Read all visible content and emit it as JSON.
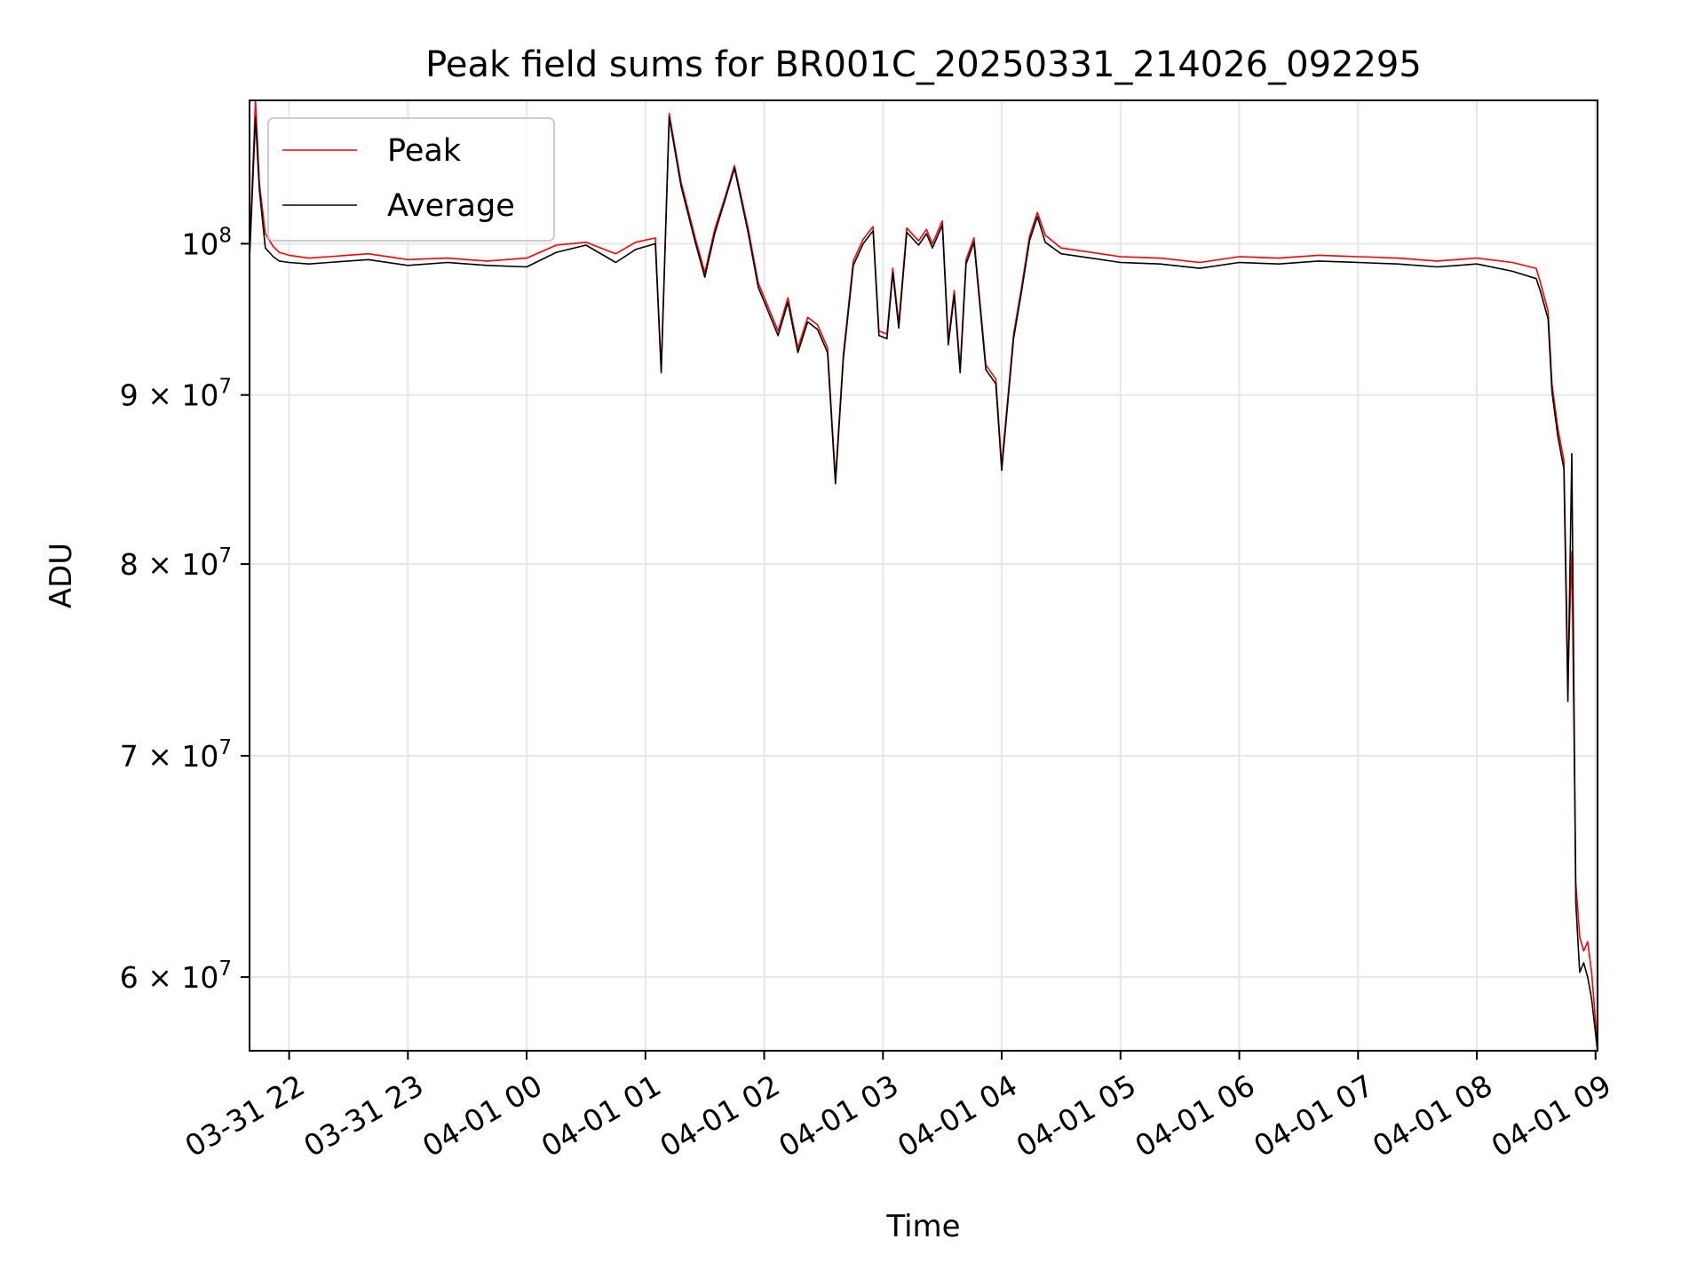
{
  "chart_data": {
    "type": "line",
    "title": "Peak field sums for BR001C_20250331_214026_092295",
    "xlabel": "Time",
    "ylabel": "ADU",
    "y_scale": "log",
    "grid": true,
    "legend_placement": "upper-left",
    "xlim": [
      "2025-03-31 21:40",
      "2025-04-01 09:01"
    ],
    "ylim": [
      57000000,
      110500000
    ],
    "x_ticks": [
      {
        "value": "2025-03-31 22:00",
        "label": "03-31 22"
      },
      {
        "value": "2025-03-31 23:00",
        "label": "03-31 23"
      },
      {
        "value": "2025-04-01 00:00",
        "label": "04-01 00"
      },
      {
        "value": "2025-04-01 01:00",
        "label": "04-01 01"
      },
      {
        "value": "2025-04-01 02:00",
        "label": "04-01 02"
      },
      {
        "value": "2025-04-01 03:00",
        "label": "04-01 03"
      },
      {
        "value": "2025-04-01 04:00",
        "label": "04-01 04"
      },
      {
        "value": "2025-04-01 05:00",
        "label": "04-01 05"
      },
      {
        "value": "2025-04-01 06:00",
        "label": "04-01 06"
      },
      {
        "value": "2025-04-01 07:00",
        "label": "04-01 07"
      },
      {
        "value": "2025-04-01 08:00",
        "label": "04-01 08"
      },
      {
        "value": "2025-04-01 09:00",
        "label": "04-01 09"
      }
    ],
    "y_ticks": [
      {
        "value": 100000000,
        "mantissa": "",
        "base": "10",
        "exp": "8"
      },
      {
        "value": 90000000,
        "mantissa": "9 × ",
        "base": "10",
        "exp": "7"
      },
      {
        "value": 80000000,
        "mantissa": "8 × ",
        "base": "10",
        "exp": "7"
      },
      {
        "value": 70000000,
        "mantissa": "7 × ",
        "base": "10",
        "exp": "7"
      },
      {
        "value": 60000000,
        "mantissa": "6 × ",
        "base": "10",
        "exp": "7"
      }
    ],
    "series": [
      {
        "name": "Peak",
        "color": "#ff0000",
        "points": [
          [
            "2025-03-31 21:40",
            99400000
          ],
          [
            "2025-03-31 21:43",
            110500000
          ],
          [
            "2025-03-31 21:45",
            104300000
          ],
          [
            "2025-03-31 21:48",
            100700000
          ],
          [
            "2025-03-31 21:52",
            99800000
          ],
          [
            "2025-03-31 21:55",
            99400000
          ],
          [
            "2025-03-31 22:00",
            99200000
          ],
          [
            "2025-03-31 22:10",
            99000000
          ],
          [
            "2025-03-31 22:20",
            99100000
          ],
          [
            "2025-03-31 22:40",
            99300000
          ],
          [
            "2025-03-31 23:00",
            98900000
          ],
          [
            "2025-03-31 23:20",
            99000000
          ],
          [
            "2025-03-31 23:40",
            98800000
          ],
          [
            "2025-04-01 00:00",
            99000000
          ],
          [
            "2025-04-01 00:15",
            99900000
          ],
          [
            "2025-04-01 00:30",
            100100000
          ],
          [
            "2025-04-01 00:45",
            99300000
          ],
          [
            "2025-04-01 00:55",
            100100000
          ],
          [
            "2025-04-01 01:05",
            100400000
          ],
          [
            "2025-04-01 01:08",
            91600000
          ],
          [
            "2025-04-01 01:12",
            109500000
          ],
          [
            "2025-04-01 01:18",
            104400000
          ],
          [
            "2025-04-01 01:25",
            100500000
          ],
          [
            "2025-04-01 01:30",
            98000000
          ],
          [
            "2025-04-01 01:35",
            101000000
          ],
          [
            "2025-04-01 01:40",
            103200000
          ],
          [
            "2025-04-01 01:45",
            105600000
          ],
          [
            "2025-04-01 01:52",
            101000000
          ],
          [
            "2025-04-01 01:57",
            97300000
          ],
          [
            "2025-04-01 02:02",
            95700000
          ],
          [
            "2025-04-01 02:07",
            94100000
          ],
          [
            "2025-04-01 02:12",
            96300000
          ],
          [
            "2025-04-01 02:17",
            93000000
          ],
          [
            "2025-04-01 02:22",
            95000000
          ],
          [
            "2025-04-01 02:27",
            94500000
          ],
          [
            "2025-04-01 02:32",
            93000000
          ],
          [
            "2025-04-01 02:36",
            84900000
          ],
          [
            "2025-04-01 02:40",
            92600000
          ],
          [
            "2025-04-01 02:45",
            98800000
          ],
          [
            "2025-04-01 02:50",
            100300000
          ],
          [
            "2025-04-01 02:55",
            101200000
          ],
          [
            "2025-04-01 02:58",
            94100000
          ],
          [
            "2025-04-01 03:02",
            93900000
          ],
          [
            "2025-04-01 03:05",
            98300000
          ],
          [
            "2025-04-01 03:08",
            94600000
          ],
          [
            "2025-04-01 03:12",
            101100000
          ],
          [
            "2025-04-01 03:18",
            100200000
          ],
          [
            "2025-04-01 03:22",
            101000000
          ],
          [
            "2025-04-01 03:25",
            100000000
          ],
          [
            "2025-04-01 03:30",
            101600000
          ],
          [
            "2025-04-01 03:33",
            93500000
          ],
          [
            "2025-04-01 03:36",
            96800000
          ],
          [
            "2025-04-01 03:39",
            91700000
          ],
          [
            "2025-04-01 03:42",
            98900000
          ],
          [
            "2025-04-01 03:46",
            100400000
          ],
          [
            "2025-04-01 03:52",
            91900000
          ],
          [
            "2025-04-01 03:57",
            91000000
          ],
          [
            "2025-04-01 04:00",
            85700000
          ],
          [
            "2025-04-01 04:06",
            93900000
          ],
          [
            "2025-04-01 04:10",
            97000000
          ],
          [
            "2025-04-01 04:14",
            100500000
          ],
          [
            "2025-04-01 04:18",
            102200000
          ],
          [
            "2025-04-01 04:22",
            100600000
          ],
          [
            "2025-04-01 04:30",
            99700000
          ],
          [
            "2025-04-01 04:45",
            99400000
          ],
          [
            "2025-04-01 05:00",
            99100000
          ],
          [
            "2025-04-01 05:20",
            99000000
          ],
          [
            "2025-04-01 05:40",
            98700000
          ],
          [
            "2025-04-01 06:00",
            99100000
          ],
          [
            "2025-04-01 06:20",
            99000000
          ],
          [
            "2025-04-01 06:40",
            99200000
          ],
          [
            "2025-04-01 07:00",
            99100000
          ],
          [
            "2025-04-01 07:20",
            99000000
          ],
          [
            "2025-04-01 07:40",
            98800000
          ],
          [
            "2025-04-01 08:00",
            99000000
          ],
          [
            "2025-04-01 08:18",
            98700000
          ],
          [
            "2025-04-01 08:30",
            98300000
          ],
          [
            "2025-04-01 08:32",
            97400000
          ],
          [
            "2025-04-01 08:36",
            95400000
          ],
          [
            "2025-04-01 08:38",
            90700000
          ],
          [
            "2025-04-01 08:41",
            87900000
          ],
          [
            "2025-04-01 08:44",
            86000000
          ],
          [
            "2025-04-01 08:46",
            73900000
          ],
          [
            "2025-04-01 08:48",
            80700000
          ],
          [
            "2025-04-01 08:50",
            64100000
          ],
          [
            "2025-04-01 08:52",
            61700000
          ],
          [
            "2025-04-01 08:54",
            61100000
          ],
          [
            "2025-04-01 08:56",
            61500000
          ],
          [
            "2025-04-01 08:58",
            60200000
          ],
          [
            "2025-04-01 09:01",
            57200000
          ]
        ]
      },
      {
        "name": "Average",
        "color": "#000000",
        "points": [
          [
            "2025-03-31 21:40",
            98900000
          ],
          [
            "2025-03-31 21:43",
            109200000
          ],
          [
            "2025-03-31 21:45",
            103800000
          ],
          [
            "2025-03-31 21:48",
            99700000
          ],
          [
            "2025-03-31 21:52",
            99100000
          ],
          [
            "2025-03-31 21:55",
            98800000
          ],
          [
            "2025-03-31 22:00",
            98700000
          ],
          [
            "2025-03-31 22:10",
            98600000
          ],
          [
            "2025-03-31 22:20",
            98700000
          ],
          [
            "2025-03-31 22:40",
            98900000
          ],
          [
            "2025-03-31 23:00",
            98500000
          ],
          [
            "2025-03-31 23:20",
            98700000
          ],
          [
            "2025-03-31 23:40",
            98500000
          ],
          [
            "2025-04-01 00:00",
            98400000
          ],
          [
            "2025-04-01 00:15",
            99400000
          ],
          [
            "2025-04-01 00:30",
            99900000
          ],
          [
            "2025-04-01 00:45",
            98700000
          ],
          [
            "2025-04-01 00:55",
            99600000
          ],
          [
            "2025-04-01 01:05",
            100000000
          ],
          [
            "2025-04-01 01:08",
            91400000
          ],
          [
            "2025-04-01 01:12",
            109200000
          ],
          [
            "2025-04-01 01:18",
            104100000
          ],
          [
            "2025-04-01 01:25",
            100200000
          ],
          [
            "2025-04-01 01:30",
            97700000
          ],
          [
            "2025-04-01 01:35",
            100700000
          ],
          [
            "2025-04-01 01:40",
            103000000
          ],
          [
            "2025-04-01 01:45",
            105400000
          ],
          [
            "2025-04-01 01:52",
            100700000
          ],
          [
            "2025-04-01 01:57",
            97000000
          ],
          [
            "2025-04-01 02:02",
            95400000
          ],
          [
            "2025-04-01 02:07",
            93800000
          ],
          [
            "2025-04-01 02:12",
            96000000
          ],
          [
            "2025-04-01 02:17",
            92700000
          ],
          [
            "2025-04-01 02:22",
            94700000
          ],
          [
            "2025-04-01 02:27",
            94200000
          ],
          [
            "2025-04-01 02:32",
            92700000
          ],
          [
            "2025-04-01 02:36",
            84600000
          ],
          [
            "2025-04-01 02:40",
            92300000
          ],
          [
            "2025-04-01 02:45",
            98500000
          ],
          [
            "2025-04-01 02:50",
            100000000
          ],
          [
            "2025-04-01 02:55",
            100900000
          ],
          [
            "2025-04-01 02:58",
            93800000
          ],
          [
            "2025-04-01 03:02",
            93600000
          ],
          [
            "2025-04-01 03:05",
            98000000
          ],
          [
            "2025-04-01 03:08",
            94300000
          ],
          [
            "2025-04-01 03:12",
            100800000
          ],
          [
            "2025-04-01 03:18",
            99900000
          ],
          [
            "2025-04-01 03:22",
            100700000
          ],
          [
            "2025-04-01 03:25",
            99700000
          ],
          [
            "2025-04-01 03:30",
            101300000
          ],
          [
            "2025-04-01 03:33",
            93200000
          ],
          [
            "2025-04-01 03:36",
            96500000
          ],
          [
            "2025-04-01 03:39",
            91400000
          ],
          [
            "2025-04-01 03:42",
            98600000
          ],
          [
            "2025-04-01 03:46",
            100100000
          ],
          [
            "2025-04-01 03:52",
            91600000
          ],
          [
            "2025-04-01 03:57",
            90700000
          ],
          [
            "2025-04-01 04:00",
            85400000
          ],
          [
            "2025-04-01 04:06",
            93600000
          ],
          [
            "2025-04-01 04:10",
            96700000
          ],
          [
            "2025-04-01 04:14",
            100200000
          ],
          [
            "2025-04-01 04:18",
            101900000
          ],
          [
            "2025-04-01 04:22",
            100100000
          ],
          [
            "2025-04-01 04:30",
            99300000
          ],
          [
            "2025-04-01 04:45",
            99000000
          ],
          [
            "2025-04-01 05:00",
            98700000
          ],
          [
            "2025-04-01 05:20",
            98600000
          ],
          [
            "2025-04-01 05:40",
            98300000
          ],
          [
            "2025-04-01 06:00",
            98700000
          ],
          [
            "2025-04-01 06:20",
            98600000
          ],
          [
            "2025-04-01 06:40",
            98800000
          ],
          [
            "2025-04-01 07:00",
            98700000
          ],
          [
            "2025-04-01 07:20",
            98600000
          ],
          [
            "2025-04-01 07:40",
            98400000
          ],
          [
            "2025-04-01 08:00",
            98600000
          ],
          [
            "2025-04-01 08:18",
            98100000
          ],
          [
            "2025-04-01 08:30",
            97600000
          ],
          [
            "2025-04-01 08:32",
            96800000
          ],
          [
            "2025-04-01 08:36",
            94900000
          ],
          [
            "2025-04-01 08:38",
            90200000
          ],
          [
            "2025-04-01 08:41",
            87400000
          ],
          [
            "2025-04-01 08:44",
            85500000
          ],
          [
            "2025-04-01 08:46",
            72700000
          ],
          [
            "2025-04-01 08:48",
            86400000
          ],
          [
            "2025-04-01 08:50",
            63200000
          ],
          [
            "2025-04-01 08:52",
            60200000
          ],
          [
            "2025-04-01 08:54",
            60600000
          ],
          [
            "2025-04-01 08:56",
            60000000
          ],
          [
            "2025-04-01 08:58",
            59100000
          ],
          [
            "2025-04-01 09:01",
            57000000
          ]
        ]
      }
    ]
  }
}
